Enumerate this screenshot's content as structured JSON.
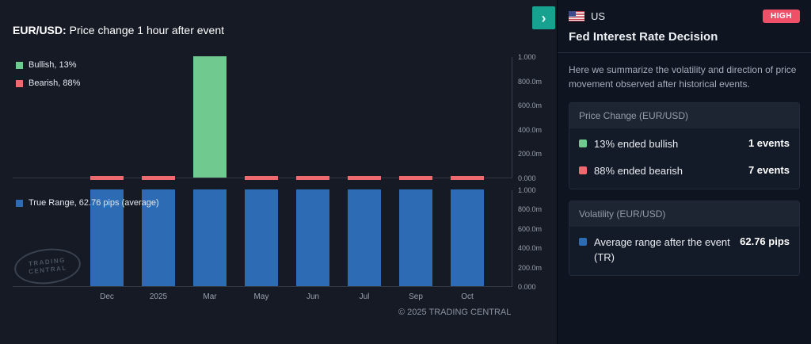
{
  "colors": {
    "bullish": "#70c98f",
    "bearish": "#ef6a6e",
    "true_range": "#2d6bb4",
    "accent_teal": "#17a18f",
    "impact_high": "#ef5068"
  },
  "chart_panel": {
    "title_symbol": "EUR/USD:",
    "title_rest": "Price change 1 hour after event",
    "expand_button": "›",
    "watermark_line1": "TRADING",
    "watermark_line2": "CENTRAL",
    "copyright": "© 2025 TRADING CENTRAL"
  },
  "chart_data": [
    {
      "type": "bar",
      "title": "EUR/USD: Price change 1 hour after event",
      "categories": [
        "Dec",
        "2025",
        "Mar",
        "May",
        "Jun",
        "Jul",
        "Sep",
        "Oct"
      ],
      "series": [
        {
          "name": "Bullish, 13%",
          "color": "#70c98f",
          "values": [
            0,
            0,
            1,
            0,
            0,
            0,
            0,
            0
          ]
        },
        {
          "name": "Bearish, 88%",
          "color": "#ef6a6e",
          "values": [
            0.01,
            0.01,
            0,
            0.01,
            0.01,
            0.01,
            0.01,
            0.01
          ]
        }
      ],
      "ylim": [
        0,
        1
      ],
      "yticks": [
        "1.000",
        "800.0m",
        "600.0m",
        "400.0m",
        "200.0m",
        "0.000"
      ],
      "grid": false,
      "legend_position": "top-left"
    },
    {
      "type": "bar",
      "title": "True Range",
      "categories": [
        "Dec",
        "2025",
        "Mar",
        "May",
        "Jun",
        "Jul",
        "Sep",
        "Oct"
      ],
      "series": [
        {
          "name": "True Range, 62.76 pips (average)",
          "color": "#2d6bb4",
          "values": [
            1,
            1,
            1,
            1,
            1,
            1,
            1,
            1
          ]
        }
      ],
      "ylim": [
        0,
        1
      ],
      "yticks": [
        "1.000",
        "800.0m",
        "600.0m",
        "400.0m",
        "200.0m",
        "0.000"
      ],
      "grid": false,
      "legend_position": "top-left"
    }
  ],
  "sidebar": {
    "country_code": "US",
    "impact_badge": "HIGH",
    "event_title": "Fed Interest Rate Decision",
    "description": "Here we summarize the volatility and direction of price movement observed after historical events.",
    "price_change_card": {
      "header": "Price Change (EUR/USD)",
      "rows": [
        {
          "label": "13% ended bullish",
          "value": "1 events",
          "color": "#70c98f"
        },
        {
          "label": "88% ended bearish",
          "value": "7 events",
          "color": "#ef6a6e"
        }
      ]
    },
    "volatility_card": {
      "header": "Volatility (EUR/USD)",
      "rows": [
        {
          "label": "Average range after the event (TR)",
          "value": "62.76 pips",
          "color": "#2d6bb4"
        }
      ]
    }
  }
}
